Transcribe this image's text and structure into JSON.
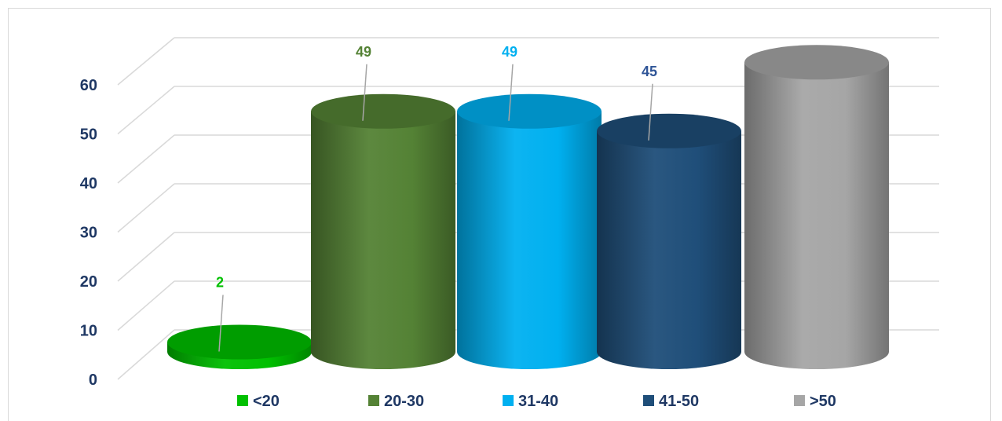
{
  "chart_data": {
    "type": "bar",
    "style": "3d-cylinder",
    "categories": [
      "<20",
      "20-30",
      "31-40",
      "41-50",
      ">50"
    ],
    "values": [
      2,
      49,
      49,
      45,
      59
    ],
    "data_labels": [
      "2",
      "49",
      "49",
      "45",
      ""
    ],
    "colors": [
      "#00c000",
      "#548235",
      "#00b0f0",
      "#1f4e79",
      "#a6a6a6"
    ],
    "label_colors": [
      "#00c000",
      "#548235",
      "#00b0f0",
      "#2f5597",
      ""
    ],
    "ylim": [
      0,
      60
    ],
    "yticks": [
      "0",
      "10",
      "20",
      "30",
      "40",
      "50",
      "60"
    ],
    "grid": true,
    "legend_position": "bottom",
    "title": "",
    "xlabel": "",
    "ylabel": ""
  }
}
